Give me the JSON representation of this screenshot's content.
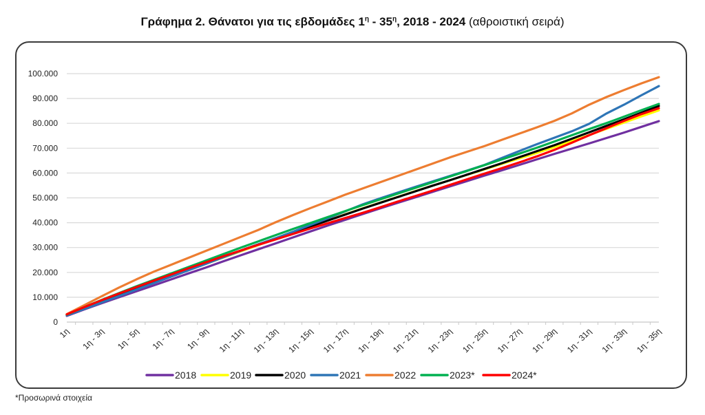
{
  "title": {
    "bold_part": "Γράφημα 2. Θάνατοι για τις εβδομάδες 1",
    "sup1": "η",
    "mid": " - 35",
    "sup2": "η",
    "years": ", 2018 - 2024",
    "normal_part": " (αθροιστική σειρά)"
  },
  "footnote": "*Προσωρινά στοιχεία",
  "chart_data": {
    "type": "line",
    "title": "Γράφημα 2. Θάνατοι για τις εβδομάδες 1η - 35η, 2018 - 2024 (αθροιστική σειρά)",
    "xlabel": "",
    "ylabel": "",
    "ylim": [
      0,
      100000
    ],
    "yticks": [
      0,
      10000,
      20000,
      30000,
      40000,
      50000,
      60000,
      70000,
      80000,
      90000,
      100000
    ],
    "ytick_labels": [
      "0",
      "10.000",
      "20.000",
      "30.000",
      "40.000",
      "50.000",
      "60.000",
      "70.000",
      "80.000",
      "90.000",
      "100.000"
    ],
    "grid": true,
    "legend_position": "bottom",
    "categories": [
      "1η",
      "1η - 2η",
      "1η - 3η",
      "1η - 4η",
      "1η - 5η",
      "1η - 6η",
      "1η - 7η",
      "1η - 8η",
      "1η - 9η",
      "1η - 10η",
      "1η - 11η",
      "1η - 12η",
      "1η - 13η",
      "1η - 14η",
      "1η - 15η",
      "1η - 16η",
      "1η - 17η",
      "1η - 18η",
      "1η - 19η",
      "1η - 20η",
      "1η - 21η",
      "1η - 22η",
      "1η - 23η",
      "1η - 24η",
      "1η - 25η",
      "1η - 26η",
      "1η - 27η",
      "1η - 28η",
      "1η - 29η",
      "1η - 30η",
      "1η - 31η",
      "1η - 32η",
      "1η - 33η",
      "1η - 34η",
      "1η - 35η"
    ],
    "visible_tick_labels": [
      "1η",
      "1η - 3η",
      "1η - 5η",
      "1η - 7η",
      "1η - 9η",
      "1η - 11η",
      "1η - 13η",
      "1η - 15η",
      "1η - 17η",
      "1η - 19η",
      "1η - 21η",
      "1η - 23η",
      "1η - 25η",
      "1η - 27η",
      "1η - 29η",
      "1η - 31η",
      "1η - 33η",
      "1η - 35η"
    ],
    "series": [
      {
        "name": "2018",
        "color": "#7030A0",
        "values": [
          2500,
          5100,
          7600,
          10000,
          12400,
          14800,
          17200,
          19600,
          22000,
          24500,
          26900,
          29300,
          31700,
          34100,
          36500,
          38900,
          41200,
          43500,
          45800,
          48000,
          50200,
          52400,
          54600,
          56800,
          59000,
          61100,
          63300,
          65500,
          67700,
          69800,
          71900,
          74100,
          76300,
          78600,
          80900
        ]
      },
      {
        "name": "2019",
        "color": "#FFFF00",
        "values": [
          2900,
          5700,
          8400,
          11000,
          13500,
          16000,
          18500,
          21000,
          23500,
          26000,
          28500,
          31000,
          33500,
          36000,
          38500,
          41000,
          43400,
          45800,
          48100,
          50400,
          52700,
          54900,
          57100,
          59300,
          61500,
          63700,
          65900,
          68100,
          70400,
          72800,
          75300,
          77800,
          80300,
          82800,
          85200
        ]
      },
      {
        "name": "2020",
        "color": "#000000",
        "values": [
          2900,
          5700,
          8400,
          11000,
          13500,
          16000,
          18500,
          21100,
          23700,
          26300,
          28800,
          31300,
          33700,
          36100,
          38500,
          40900,
          43300,
          45700,
          48000,
          50300,
          52600,
          54900,
          57100,
          59400,
          61700,
          64000,
          66400,
          68800,
          71200,
          73800,
          76400,
          79000,
          81600,
          84300,
          87000
        ]
      },
      {
        "name": "2021",
        "color": "#2E75B6",
        "values": [
          2700,
          5300,
          7900,
          10500,
          13100,
          15700,
          18300,
          20900,
          23500,
          26100,
          28700,
          31300,
          33800,
          36400,
          39100,
          41800,
          44600,
          47400,
          49800,
          52100,
          54400,
          56600,
          58800,
          61000,
          63300,
          66100,
          68900,
          71600,
          74200,
          76800,
          79800,
          84000,
          87500,
          91300,
          95000
        ]
      },
      {
        "name": "2022",
        "color": "#ED7D31",
        "values": [
          3200,
          6800,
          10400,
          13900,
          17200,
          20300,
          23100,
          25900,
          28700,
          31500,
          34300,
          37100,
          40200,
          43100,
          45900,
          48600,
          51300,
          53800,
          56300,
          58800,
          61300,
          63800,
          66300,
          68600,
          70900,
          73400,
          75900,
          78400,
          81000,
          84000,
          87500,
          90600,
          93400,
          96100,
          98600
        ]
      },
      {
        "name": "2023*",
        "color": "#00B050",
        "values": [
          3000,
          6000,
          8900,
          11700,
          14400,
          17000,
          19600,
          22200,
          24800,
          27400,
          30000,
          32500,
          35000,
          37500,
          39900,
          42300,
          44700,
          47100,
          49400,
          51700,
          54000,
          56300,
          58600,
          60900,
          63200,
          65500,
          67800,
          70200,
          72700,
          75200,
          77700,
          80100,
          82700,
          85300,
          87800
        ]
      },
      {
        "name": "2024*",
        "color": "#FF0000",
        "values": [
          3100,
          6000,
          8800,
          11500,
          14100,
          16700,
          19200,
          21700,
          24100,
          26500,
          28800,
          31100,
          33300,
          35500,
          37700,
          39800,
          41900,
          44000,
          46200,
          48500,
          50700,
          52900,
          55200,
          57500,
          59800,
          62000,
          64300,
          66700,
          69300,
          72200,
          75200,
          78100,
          81000,
          83700,
          86100
        ]
      }
    ]
  }
}
